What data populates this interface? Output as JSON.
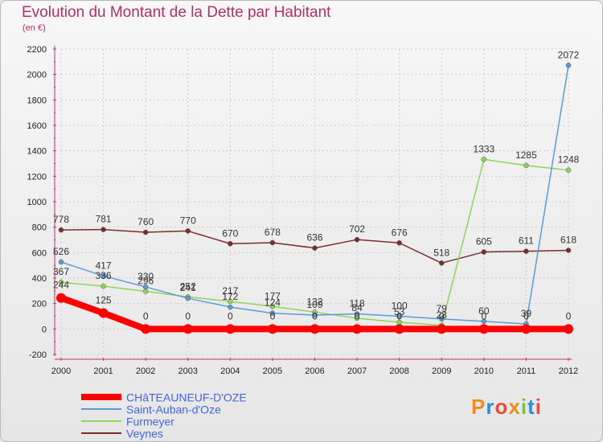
{
  "title": "Evolution du Montant de la Dette par Habitant",
  "subtitle": "(en €)",
  "logo": {
    "text": "Proxiti",
    "colors": [
      "#f08c1e",
      "#2e8fd6",
      "#e84c3d",
      "#f08c1e",
      "#7ac142",
      "#2e8fd6",
      "#e84c3d"
    ]
  },
  "chart_data": {
    "type": "line",
    "x": [
      "2000",
      "2001",
      "2002",
      "2003",
      "2004",
      "2005",
      "2006",
      "2007",
      "2008",
      "2009",
      "2010",
      "2011",
      "2012"
    ],
    "ylim": [
      -200,
      2200
    ],
    "yticks": [
      -200,
      0,
      200,
      400,
      600,
      800,
      1000,
      1200,
      1400,
      1600,
      1800,
      2000,
      2200
    ],
    "grid": true,
    "legend_position": "bottom-left",
    "series": [
      {
        "name": "CHâTEAUNEUF-D'OZE",
        "color": "#ff0000",
        "values": [
          244,
          125,
          0,
          0,
          0,
          0,
          0,
          0,
          0,
          0,
          0,
          0,
          0
        ],
        "labels": [
          "244",
          "125",
          "0",
          "0",
          "0",
          "0",
          "0",
          "0",
          "0",
          "0",
          "0",
          "0",
          "0"
        ]
      },
      {
        "name": "Saint-Auban-d'Oze",
        "color": "#5b9bd5",
        "values": [
          526,
          417,
          330,
          241,
          172,
          124,
          109,
          118,
          100,
          79,
          60,
          39,
          2072
        ],
        "labels": [
          "526",
          "417",
          "330",
          "241",
          "172",
          "124",
          "109",
          "118",
          "100",
          "79",
          "60",
          "39",
          "2072"
        ]
      },
      {
        "name": "Furmeyer",
        "color": "#8fd45a",
        "values": [
          367,
          336,
          296,
          252,
          217,
          177,
          132,
          84,
          53,
          28,
          1333,
          1285,
          1248
        ],
        "labels": [
          "367",
          "336",
          "296",
          "252",
          "217",
          "177",
          "132",
          "84",
          "53",
          "28",
          "1333",
          "1285",
          "1248"
        ]
      },
      {
        "name": "Veynes",
        "color": "#7b2d2d",
        "values": [
          778,
          781,
          760,
          770,
          670,
          678,
          636,
          702,
          676,
          518,
          605,
          611,
          618
        ],
        "labels": [
          "778",
          "781",
          "760",
          "770",
          "670",
          "678",
          "636",
          "702",
          "676",
          "518",
          "605",
          "611",
          "618"
        ]
      }
    ]
  }
}
